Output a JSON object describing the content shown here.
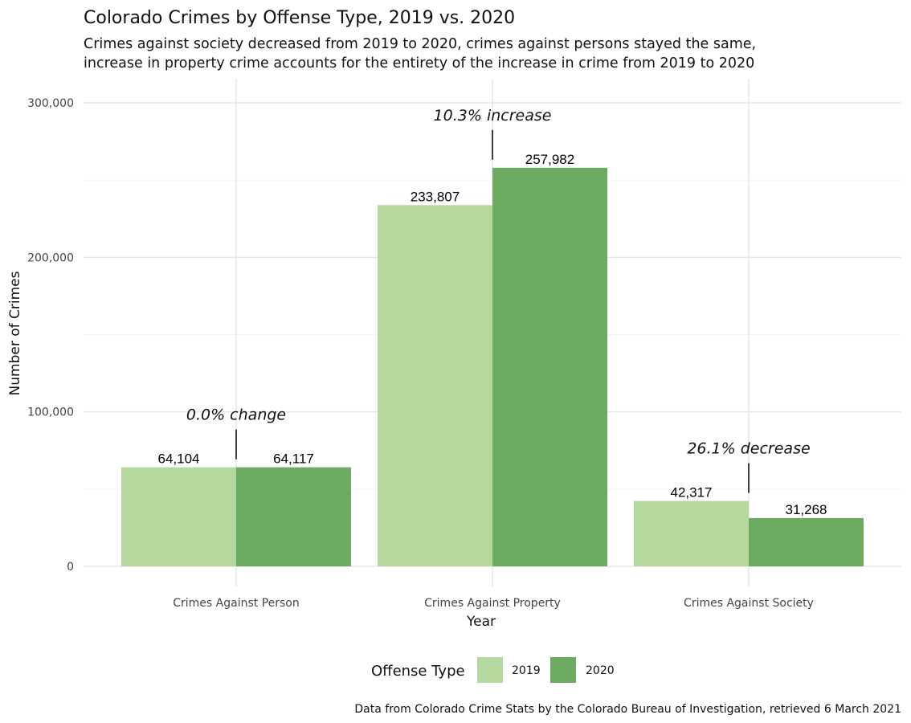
{
  "chart_data": {
    "type": "bar",
    "title": "Colorado Crimes by Offense Type, 2019 vs. 2020",
    "subtitle_lines": [
      "Crimes against society decreased from 2019 to 2020, crimes against persons stayed the same,",
      "increase in property crime accounts for the entirety of the increase in crime from 2019 to 2020"
    ],
    "xlabel": "Year",
    "ylabel": "Number of Crimes",
    "categories": [
      "Crimes Against Person",
      "Crimes Against Property",
      "Crimes Against Society"
    ],
    "series": [
      {
        "name": "2019",
        "values": [
          64104,
          233807,
          42317
        ],
        "labels": [
          "64,104",
          "233,807",
          "42,317"
        ],
        "color": "#b5d89f"
      },
      {
        "name": "2020",
        "values": [
          64117,
          257982,
          31268
        ],
        "labels": [
          "64,117",
          "257,982",
          "31,268"
        ],
        "color": "#6cab61"
      }
    ],
    "annotations": [
      "0.0% change",
      "10.3% increase",
      "26.1% decrease"
    ],
    "ylim": [
      0,
      300000
    ],
    "yticks": [
      0,
      100000,
      200000,
      300000
    ],
    "ytick_labels": [
      "0",
      "100,000",
      "200,000",
      "300,000"
    ],
    "legend": {
      "title": "Offense Type",
      "placement": "bottom"
    },
    "grid": true,
    "caption": "Data from Colorado Crime Stats by the Colorado Bureau of Investigation, retrieved 6 March 2021"
  }
}
